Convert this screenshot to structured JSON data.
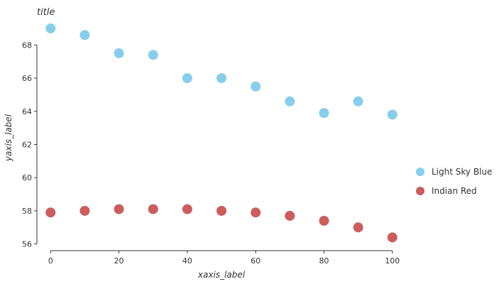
{
  "chart_data": {
    "type": "scatter",
    "title": "title",
    "xlabel": "xaxis_label",
    "ylabel": "yaxis_label",
    "xlim": [
      -4,
      104
    ],
    "ylim": [
      55.6,
      69.3
    ],
    "x_ticks": [
      0,
      20,
      40,
      60,
      80,
      100
    ],
    "y_ticks": [
      56,
      58,
      60,
      62,
      64,
      66,
      68
    ],
    "grid": false,
    "legend_position": "right",
    "series": [
      {
        "name": "Light Sky Blue",
        "color": "#87ceeb",
        "x": [
          0,
          10,
          20,
          30,
          40,
          50,
          60,
          70,
          80,
          90,
          100
        ],
        "y": [
          69.0,
          68.6,
          67.5,
          67.4,
          66.0,
          66.0,
          65.5,
          64.6,
          63.9,
          64.6,
          63.8
        ]
      },
      {
        "name": "Indian Red",
        "color": "#cd5c5c",
        "x": [
          0,
          10,
          20,
          30,
          40,
          50,
          60,
          70,
          80,
          90,
          100
        ],
        "y": [
          57.9,
          58.0,
          58.1,
          58.1,
          58.1,
          58.0,
          57.9,
          57.7,
          57.4,
          57.0,
          56.4
        ]
      }
    ]
  }
}
